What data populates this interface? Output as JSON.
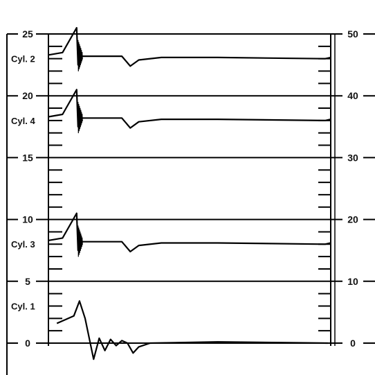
{
  "chart_data": {
    "type": "line",
    "title": "",
    "xlabel": "",
    "ylabel": "",
    "left_axis": {
      "ylim": [
        0,
        25
      ],
      "ticks": [
        0,
        5,
        10,
        15,
        20,
        25
      ],
      "tick_labels": [
        "0",
        "5",
        "10",
        "15",
        "20",
        "25"
      ]
    },
    "right_axis": {
      "ylim": [
        0,
        50
      ],
      "ticks": [
        0,
        10,
        20,
        30,
        40,
        50
      ],
      "tick_labels": [
        "0",
        "10",
        "20",
        "30",
        "40",
        "50"
      ]
    },
    "bands": [
      {
        "label": "Cyl. 2",
        "lower": 20,
        "upper": 25
      },
      {
        "label": "Cyl. 4",
        "lower": 15,
        "upper": 20
      },
      {
        "label": "",
        "lower": 10,
        "upper": 15
      },
      {
        "label": "Cyl. 3",
        "lower": 5,
        "upper": 10
      },
      {
        "label": "Cyl. 1",
        "lower": 0,
        "upper": 5
      }
    ],
    "x_range": [
      0,
      100
    ],
    "series": [
      {
        "name": "Cyl. 2",
        "values": [
          [
            0,
            23.3
          ],
          [
            5,
            23.5
          ],
          [
            10,
            25.5
          ],
          [
            10.5,
            22.5
          ],
          [
            12,
            23.2
          ],
          [
            26,
            23.2
          ],
          [
            29,
            22.4
          ],
          [
            32,
            22.9
          ],
          [
            40,
            23.1
          ],
          [
            60,
            23.1
          ],
          [
            98,
            23.0
          ],
          [
            100,
            23.1
          ]
        ]
      },
      {
        "name": "Cyl. 4",
        "values": [
          [
            0,
            18.3
          ],
          [
            5,
            18.5
          ],
          [
            10,
            20.5
          ],
          [
            10.5,
            17.5
          ],
          [
            12,
            18.2
          ],
          [
            26,
            18.2
          ],
          [
            29,
            17.4
          ],
          [
            32,
            17.9
          ],
          [
            40,
            18.1
          ],
          [
            60,
            18.1
          ],
          [
            98,
            18.0
          ],
          [
            100,
            18.1
          ]
        ]
      },
      {
        "name": "Cyl. 3",
        "values": [
          [
            0,
            8.3
          ],
          [
            5,
            8.5
          ],
          [
            10,
            10.5
          ],
          [
            10.5,
            7.5
          ],
          [
            12,
            8.2
          ],
          [
            26,
            8.2
          ],
          [
            29,
            7.4
          ],
          [
            32,
            7.9
          ],
          [
            40,
            8.1
          ],
          [
            60,
            8.1
          ],
          [
            98,
            8.0
          ],
          [
            100,
            8.1
          ]
        ]
      },
      {
        "name": "Cyl. 1",
        "values": [
          [
            3,
            1.6
          ],
          [
            6,
            1.9
          ],
          [
            9,
            2.2
          ],
          [
            11,
            3.4
          ],
          [
            13,
            2.0
          ],
          [
            16,
            -1.3
          ],
          [
            18,
            0.4
          ],
          [
            20,
            -0.6
          ],
          [
            22,
            0.3
          ],
          [
            24,
            -0.2
          ],
          [
            26,
            0.2
          ],
          [
            28,
            0.0
          ],
          [
            30,
            -0.8
          ],
          [
            32,
            -0.3
          ],
          [
            36,
            0.0
          ],
          [
            60,
            0.1
          ],
          [
            99,
            0.0
          ]
        ]
      }
    ],
    "grid": false,
    "legend": "none",
    "colors": {
      "line": "#000000",
      "background": "#ffffff"
    }
  }
}
